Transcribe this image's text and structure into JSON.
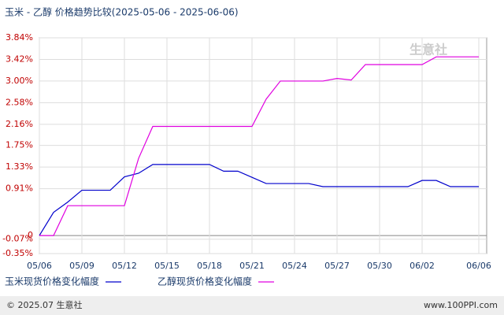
{
  "chart_data": {
    "type": "line",
    "title": "玉米 - 乙醇 价格趋势比较(2025-05-06 - 2025-06-06)",
    "categories": [
      "05/06",
      null,
      null,
      "05/09",
      null,
      null,
      "05/12",
      null,
      null,
      "05/15",
      null,
      null,
      "05/18",
      null,
      null,
      "05/21",
      null,
      null,
      "05/24",
      null,
      null,
      "05/27",
      null,
      null,
      "05/30",
      null,
      null,
      "06/02",
      null,
      null,
      null,
      "06/06"
    ],
    "series": [
      {
        "name": "玉米现货价格变化幅度",
        "color": "#0000cc",
        "values": [
          0.0,
          0.45,
          0.65,
          0.88,
          0.88,
          0.88,
          1.14,
          1.21,
          1.38,
          1.38,
          1.38,
          1.38,
          1.38,
          1.25,
          1.25,
          1.13,
          1.01,
          1.01,
          1.01,
          1.01,
          0.95,
          0.95,
          0.95,
          0.95,
          0.95,
          0.95,
          0.95,
          1.07,
          1.07,
          0.95,
          0.95,
          0.95
        ]
      },
      {
        "name": "乙醇现货价格变化幅度",
        "color": "#e000e0",
        "values": [
          0.0,
          0.0,
          0.58,
          0.58,
          0.58,
          0.58,
          0.58,
          1.5,
          2.12,
          2.12,
          2.12,
          2.12,
          2.12,
          2.12,
          2.12,
          2.12,
          2.65,
          3.0,
          3.0,
          3.0,
          3.0,
          3.05,
          3.02,
          3.32,
          3.32,
          3.32,
          3.32,
          3.32,
          3.47,
          3.47,
          3.47,
          3.47
        ]
      }
    ],
    "ylim": [
      -0.35,
      3.84
    ],
    "yticks": [
      {
        "value": 3.84,
        "label": "3.84%"
      },
      {
        "value": 3.42,
        "label": "3.42%"
      },
      {
        "value": 3.0,
        "label": "3.00%"
      },
      {
        "value": 2.58,
        "label": "2.58%"
      },
      {
        "value": 2.16,
        "label": "2.16%"
      },
      {
        "value": 1.75,
        "label": "1.75%"
      },
      {
        "value": 1.33,
        "label": "1.33%"
      },
      {
        "value": 0.91,
        "label": "0.91%"
      },
      0,
      {
        "value": -0.07,
        "label": "-0.07%"
      },
      {
        "value": -0.35,
        "label": "-0.35%"
      }
    ],
    "grid": true,
    "watermark": "生意社",
    "footer_left": "© 2025.07 生意社",
    "footer_right": "www.100PPI.com"
  }
}
